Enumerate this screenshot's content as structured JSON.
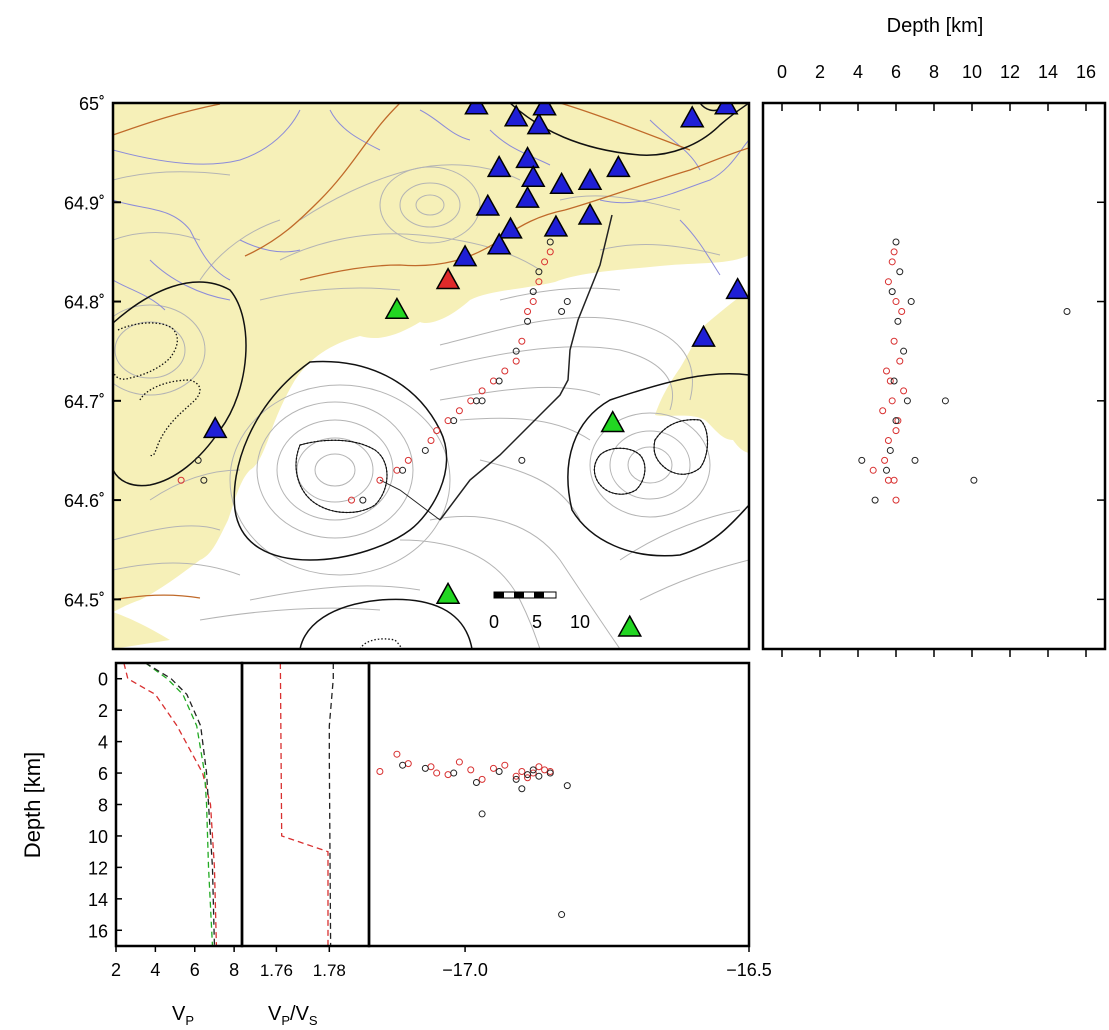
{
  "map": {
    "lat_ticks": [
      {
        "value": 65.0,
        "label": "65˚"
      },
      {
        "value": 64.9,
        "label": "64.9˚"
      },
      {
        "value": 64.8,
        "label": "64.8˚"
      },
      {
        "value": 64.7,
        "label": "64.7˚"
      },
      {
        "value": 64.6,
        "label": "64.6˚"
      },
      {
        "value": 64.5,
        "label": "64.5˚"
      }
    ],
    "lat_range": [
      64.45,
      65.0
    ],
    "lon_range": [
      -17.62,
      -16.5
    ],
    "scale_bar": {
      "labels": [
        "0",
        "5",
        "10"
      ],
      "unit_km": 10
    },
    "colors": {
      "land": "#f6f0b8",
      "ice": "#ffffff",
      "rivers": "#8c8cd9",
      "roads": "#c06a2a",
      "contours": "#b4b4b4",
      "glacier_outline": "#111111"
    },
    "stations_blue": [
      [
        -16.98,
        64.998
      ],
      [
        -16.91,
        64.986
      ],
      [
        -16.87,
        64.978
      ],
      [
        -16.86,
        64.997
      ],
      [
        -16.6,
        64.985
      ],
      [
        -16.54,
        64.998
      ],
      [
        -16.94,
        64.935
      ],
      [
        -16.89,
        64.944
      ],
      [
        -16.88,
        64.925
      ],
      [
        -16.83,
        64.918
      ],
      [
        -16.78,
        64.922
      ],
      [
        -16.73,
        64.935
      ],
      [
        -16.96,
        64.896
      ],
      [
        -16.89,
        64.904
      ],
      [
        -16.84,
        64.875
      ],
      [
        -16.78,
        64.887
      ],
      [
        -16.92,
        64.873
      ],
      [
        -16.94,
        64.857
      ],
      [
        -17.0,
        64.845
      ],
      [
        -16.52,
        64.812
      ],
      [
        -16.58,
        64.764
      ],
      [
        -17.44,
        64.672
      ]
    ],
    "stations_green": [
      [
        -17.12,
        64.792
      ],
      [
        -16.74,
        64.678
      ],
      [
        -17.03,
        64.505
      ],
      [
        -16.71,
        64.472
      ]
    ],
    "stations_red": [
      [
        -17.03,
        64.822
      ]
    ]
  },
  "depth_panel": {
    "title": "Depth [km]",
    "ticks": [
      "0",
      "2",
      "4",
      "6",
      "8",
      "10",
      "12",
      "14",
      "16"
    ],
    "range": [
      -1,
      17
    ]
  },
  "lon_section": {
    "ticks": [
      {
        "value": -17.0,
        "label": "−17.0"
      },
      {
        "value": -16.5,
        "label": "−16.5"
      }
    ]
  },
  "velocity_panel": {
    "ylabel": "Depth [km]",
    "yticks": [
      "0",
      "2",
      "4",
      "6",
      "8",
      "10",
      "12",
      "14",
      "16"
    ],
    "vp_ticks": [
      "2",
      "4",
      "6",
      "8"
    ],
    "vp_label": "V",
    "vp_sub": "P",
    "vpvs_ticks": [
      "1.76",
      "1.78"
    ],
    "vpvs_label_a": "V",
    "vpvs_label_b": "/V",
    "vpvs_sub_a": "P",
    "vpvs_sub_b": "S"
  },
  "chart_data": {
    "type": "scatter",
    "series": [
      {
        "color": "#d83030",
        "points": [
          [
            -16.86,
            64.84,
            5.8
          ],
          [
            -16.87,
            64.82,
            5.6
          ],
          [
            -16.88,
            64.8,
            6.0
          ],
          [
            -16.9,
            64.76,
            5.9
          ],
          [
            -16.91,
            64.74,
            6.2
          ],
          [
            -16.95,
            64.72,
            5.7
          ],
          [
            -16.99,
            64.7,
            5.8
          ],
          [
            -17.03,
            64.68,
            6.1
          ],
          [
            -17.06,
            64.66,
            5.6
          ],
          [
            -17.1,
            64.64,
            5.4
          ],
          [
            -17.15,
            64.62,
            5.9
          ],
          [
            -17.2,
            64.6,
            6.0
          ],
          [
            -16.85,
            64.85,
            5.9
          ],
          [
            -16.89,
            64.79,
            6.3
          ],
          [
            -16.93,
            64.73,
            5.5
          ],
          [
            -16.97,
            64.71,
            6.4
          ],
          [
            -17.01,
            64.69,
            5.3
          ],
          [
            -17.05,
            64.67,
            6.0
          ],
          [
            -17.12,
            64.63,
            4.8
          ],
          [
            -17.5,
            64.62,
            5.6
          ]
        ]
      },
      {
        "color": "#222222",
        "points": [
          [
            -16.85,
            64.86,
            6.0
          ],
          [
            -16.87,
            64.83,
            6.2
          ],
          [
            -16.88,
            64.81,
            5.8
          ],
          [
            -16.89,
            64.78,
            6.1
          ],
          [
            -16.91,
            64.75,
            6.4
          ],
          [
            -16.94,
            64.72,
            5.9
          ],
          [
            -16.98,
            64.7,
            6.6
          ],
          [
            -17.02,
            64.68,
            6.0
          ],
          [
            -17.07,
            64.65,
            5.7
          ],
          [
            -17.11,
            64.63,
            5.5
          ],
          [
            -17.18,
            64.6,
            4.9
          ],
          [
            -16.82,
            64.8,
            6.8
          ],
          [
            -16.9,
            64.64,
            7.0
          ],
          [
            -17.47,
            64.64,
            4.2
          ],
          [
            -16.97,
            64.7,
            8.6
          ],
          [
            -16.83,
            64.79,
            15.0
          ],
          [
            -17.46,
            64.62,
            10.1
          ]
        ]
      }
    ],
    "velocity_models": {
      "vp": [
        {
          "color": "#d83030",
          "depth": [
            -1,
            0,
            1,
            3,
            6,
            8,
            12,
            17
          ],
          "value": [
            2.4,
            2.6,
            4.0,
            5.1,
            6.4,
            6.8,
            7.0,
            7.1
          ]
        },
        {
          "color": "#22aa22",
          "depth": [
            -1,
            0,
            1,
            3,
            6,
            8,
            12,
            17
          ],
          "value": [
            3.5,
            4.6,
            5.4,
            6.1,
            6.5,
            6.6,
            6.7,
            6.9
          ]
        },
        {
          "color": "#222222",
          "depth": [
            -1,
            0,
            1,
            3,
            6,
            8,
            12,
            17
          ],
          "value": [
            3.5,
            4.8,
            5.6,
            6.3,
            6.6,
            6.7,
            6.9,
            7.0
          ]
        }
      ],
      "vpvs": [
        {
          "color": "#d83030",
          "depth": [
            -1,
            10,
            11,
            17
          ],
          "value": [
            1.7615,
            1.762,
            1.7795,
            1.7795
          ]
        },
        {
          "color": "#222222",
          "depth": [
            -1,
            0,
            3,
            5,
            17
          ],
          "value": [
            1.7815,
            1.7815,
            1.78,
            1.78,
            1.7805
          ]
        }
      ]
    }
  }
}
